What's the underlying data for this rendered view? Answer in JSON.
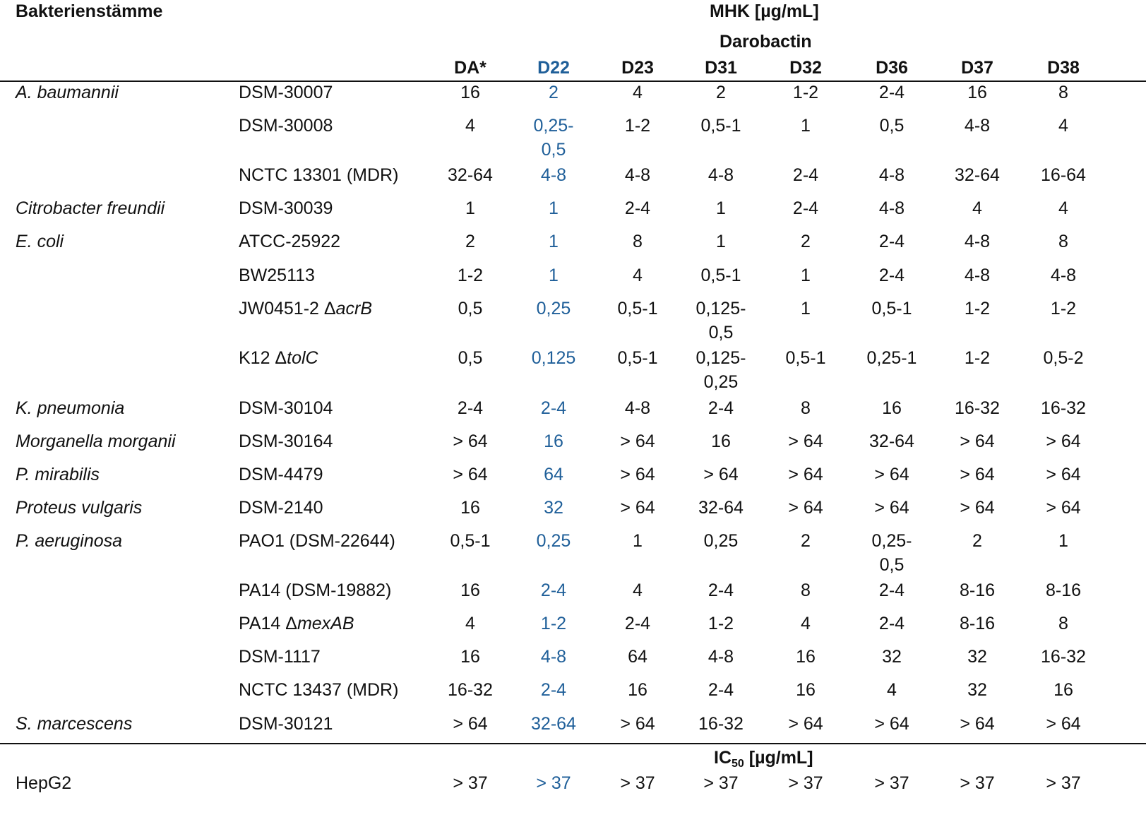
{
  "header": {
    "strains_label": "Bakterienstämme",
    "mic_label": "MHK [µg/mL]",
    "group_label": "Darobactin",
    "ic50_label": "IC",
    "ic50_sub": "50",
    "ic50_unit": " [µg/mL]"
  },
  "columns": [
    "DA*",
    "D22",
    "D23",
    "D31",
    "D32",
    "D36",
    "D37",
    "D38"
  ],
  "highlight_color": "#1f5f99",
  "rows": [
    {
      "species": "A. baumannii",
      "strain": "DSM-30007",
      "values": [
        "16",
        "2",
        "4",
        "2",
        "1-2",
        "2-4",
        "16",
        "8"
      ]
    },
    {
      "species": "",
      "strain": "DSM-30008",
      "values": [
        "4",
        "0,25-\n0,5",
        "1-2",
        "0,5-1",
        "1",
        "0,5",
        "4-8",
        "4"
      ]
    },
    {
      "species": "",
      "strain": "NCTC 13301 (MDR)",
      "values": [
        "32-64",
        "4-8",
        "4-8",
        "4-8",
        "2-4",
        "4-8",
        "32-64",
        "16-64"
      ]
    },
    {
      "species": "Citrobacter freundii",
      "strain": "DSM-30039",
      "values": [
        "1",
        "1",
        "2-4",
        "1",
        "2-4",
        "4-8",
        "4",
        "4"
      ]
    },
    {
      "species": "E. coli",
      "strain": "ATCC-25922",
      "values": [
        "2",
        "1",
        "8",
        "1",
        "2",
        "2-4",
        "4-8",
        "8"
      ]
    },
    {
      "species": "",
      "strain": "BW25113",
      "values": [
        "1-2",
        "1",
        "4",
        "0,5-1",
        "1",
        "2-4",
        "4-8",
        "4-8"
      ]
    },
    {
      "species": "",
      "strain": "JW0451-2 Δ",
      "strain_italic": "acrB",
      "values": [
        "0,5",
        "0,25",
        "0,5-1",
        "0,125-\n0,5",
        "1",
        "0,5-1",
        "1-2",
        "1-2"
      ]
    },
    {
      "species": "",
      "strain": "K12 Δ",
      "strain_italic": "tolC",
      "values": [
        "0,5",
        "0,125",
        "0,5-1",
        "0,125-\n0,25",
        "0,5-1",
        "0,25-1",
        "1-2",
        "0,5-2"
      ]
    },
    {
      "species": "K. pneumonia",
      "strain": "DSM-30104",
      "values": [
        "2-4",
        "2-4",
        "4-8",
        "2-4",
        "8",
        "16",
        "16-32",
        "16-32"
      ]
    },
    {
      "species": "Morganella morganii",
      "strain": "DSM-30164",
      "values": [
        "> 64",
        "16",
        "> 64",
        "16",
        "> 64",
        "32-64",
        "> 64",
        "> 64"
      ]
    },
    {
      "species": "P. mirabilis",
      "strain": "DSM-4479",
      "values": [
        "> 64",
        "64",
        "> 64",
        "> 64",
        "> 64",
        "> 64",
        "> 64",
        "> 64"
      ]
    },
    {
      "species": "Proteus vulgaris",
      "strain": "DSM-2140",
      "values": [
        "16",
        "32",
        "> 64",
        "32-64",
        "> 64",
        "> 64",
        "> 64",
        "> 64"
      ]
    },
    {
      "species": "P. aeruginosa",
      "strain": "PAO1 (DSM-22644)",
      "values": [
        "0,5-1",
        "0,25",
        "1",
        "0,25",
        "2",
        "0,25-\n0,5",
        "2",
        "1"
      ]
    },
    {
      "species": "",
      "strain": "PA14 (DSM-19882)",
      "values": [
        "16",
        "2-4",
        "4",
        "2-4",
        "8",
        "2-4",
        "8-16",
        "8-16"
      ]
    },
    {
      "species": "",
      "strain": "PA14 Δ",
      "strain_italic": "mexAB",
      "values": [
        "4",
        "1-2",
        "2-4",
        "1-2",
        "4",
        "2-4",
        "8-16",
        "8"
      ]
    },
    {
      "species": "",
      "strain": "DSM-1117",
      "values": [
        "16",
        "4-8",
        "64",
        "4-8",
        "16",
        "32",
        "32",
        "16-32"
      ]
    },
    {
      "species": "",
      "strain": "NCTC 13437 (MDR)",
      "values": [
        "16-32",
        "2-4",
        "16",
        "2-4",
        "16",
        "4",
        "32",
        "16"
      ]
    },
    {
      "species": "S. marcescens",
      "strain": "DSM-30121",
      "values": [
        "> 64",
        "32-64",
        "> 64",
        "16-32",
        "> 64",
        "> 64",
        "> 64",
        "> 64"
      ]
    }
  ],
  "cytotox": {
    "cell_line": "HepG2",
    "values": [
      "> 37",
      "> 37",
      "> 37",
      "> 37",
      "> 37",
      "> 37",
      "> 37",
      "> 37"
    ]
  }
}
